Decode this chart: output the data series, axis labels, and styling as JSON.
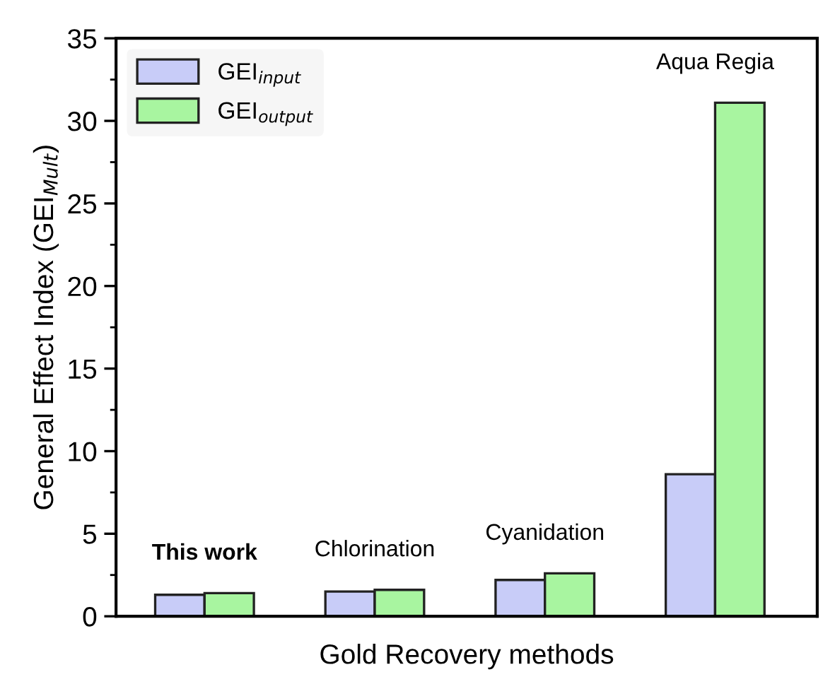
{
  "chart_data": {
    "type": "bar",
    "xlabel": "Gold Recovery methods",
    "ylabel": "General Effect Index (GEI$_{Mult}$)",
    "categories": [
      "This work",
      "Chlorination",
      "Cyanidation",
      "Aqua Regia"
    ],
    "series": [
      {
        "name": "GEI$_{input}$",
        "color": "#c8ccf8",
        "values": [
          1.3,
          1.5,
          2.2,
          8.6
        ]
      },
      {
        "name": "GEI$_{output}$",
        "color": "#a8f5a0",
        "values": [
          1.4,
          1.6,
          2.6,
          31.1
        ]
      }
    ],
    "ylim": [
      0,
      35
    ],
    "yticks": [
      0,
      5,
      10,
      15,
      20,
      25,
      30,
      35
    ],
    "grid": false,
    "legend": "top left"
  }
}
